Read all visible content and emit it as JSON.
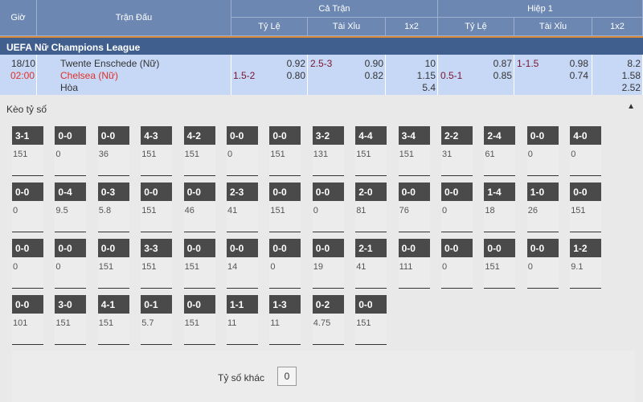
{
  "header": {
    "time": "Giờ",
    "match": "Trận Đấu",
    "full": "Cả Trận",
    "half": "Hiệp 1",
    "handicap": "Tỷ Lệ",
    "ou": "Tài Xỉu",
    "x12": "1x2"
  },
  "league": "UEFA Nữ Champions League",
  "match": {
    "date": "18/10",
    "time": "02:00",
    "home": "Twente Enschede (Nữ)",
    "away": "Chelsea (Nữ)",
    "draw": "Hòa",
    "full": {
      "hdp_line": "1.5-2",
      "hdp_home": "0.92",
      "hdp_away": "0.80",
      "ou_line": "2.5-3",
      "ou_over": "0.90",
      "ou_under": "0.82",
      "x1": "10",
      "x2": "1.15",
      "xd": "5.4"
    },
    "half": {
      "hdp_line": "0.5-1",
      "hdp_home": "0.87",
      "hdp_away": "0.85",
      "ou_line": "1-1.5",
      "ou_over": "0.98",
      "ou_under": "0.74",
      "x1": "8.2",
      "x2": "1.58",
      "xd": "2.52"
    }
  },
  "correct_score": {
    "title": "Kèo tỷ số",
    "toggle_icon": "triangle-up-icon",
    "cells": [
      [
        "3-1",
        "151"
      ],
      [
        "0-0",
        "0"
      ],
      [
        "0-0",
        "36"
      ],
      [
        "4-3",
        "151"
      ],
      [
        "4-2",
        "151"
      ],
      [
        "0-0",
        "0"
      ],
      [
        "0-0",
        "151"
      ],
      [
        "3-2",
        "131"
      ],
      [
        "4-4",
        "151"
      ],
      [
        "3-4",
        "151"
      ],
      [
        "2-2",
        "31"
      ],
      [
        "2-4",
        "61"
      ],
      [
        "0-0",
        "0"
      ],
      [
        "4-0",
        "0"
      ],
      [
        "0-0",
        "0"
      ],
      [
        "0-4",
        "9.5"
      ],
      [
        "0-3",
        "5.8"
      ],
      [
        "0-0",
        "151"
      ],
      [
        "0-0",
        "46"
      ],
      [
        "2-3",
        "41"
      ],
      [
        "0-0",
        "151"
      ],
      [
        "0-0",
        "0"
      ],
      [
        "2-0",
        "81"
      ],
      [
        "0-0",
        "76"
      ],
      [
        "0-0",
        "0"
      ],
      [
        "1-4",
        "18"
      ],
      [
        "1-0",
        "26"
      ],
      [
        "0-0",
        "151"
      ],
      [
        "0-0",
        "0"
      ],
      [
        "0-0",
        "0"
      ],
      [
        "0-0",
        "151"
      ],
      [
        "3-3",
        "151"
      ],
      [
        "0-0",
        "151"
      ],
      [
        "0-0",
        "14"
      ],
      [
        "0-0",
        "0"
      ],
      [
        "0-0",
        "19"
      ],
      [
        "2-1",
        "41"
      ],
      [
        "0-0",
        "111"
      ],
      [
        "0-0",
        "0"
      ],
      [
        "0-0",
        "151"
      ],
      [
        "0-0",
        "0"
      ],
      [
        "1-2",
        "9.1"
      ],
      [
        "0-0",
        "101"
      ],
      [
        "3-0",
        "151"
      ],
      [
        "4-1",
        "151"
      ],
      [
        "0-1",
        "5.7"
      ],
      [
        "0-0",
        "151"
      ],
      [
        "1-1",
        "11"
      ],
      [
        "1-3",
        "11"
      ],
      [
        "0-2",
        "4.75"
      ],
      [
        "0-0",
        "151"
      ]
    ],
    "other_label": "Tỷ số khác",
    "other_value": "0"
  }
}
